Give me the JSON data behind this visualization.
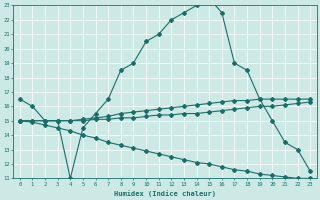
{
  "xlabel": "Humidex (Indice chaleur)",
  "xlim": [
    -0.5,
    23.5
  ],
  "ylim": [
    11,
    23
  ],
  "yticks": [
    11,
    12,
    13,
    14,
    15,
    16,
    17,
    18,
    19,
    20,
    21,
    22,
    23
  ],
  "xticks": [
    0,
    1,
    2,
    3,
    4,
    5,
    6,
    7,
    8,
    9,
    10,
    11,
    12,
    13,
    14,
    15,
    16,
    17,
    18,
    19,
    20,
    21,
    22,
    23
  ],
  "bg_color": "#cce9e5",
  "line_color": "#1a6e6a",
  "lines": [
    {
      "x": [
        0,
        1,
        2,
        3,
        4,
        5,
        6,
        7,
        8,
        9,
        10,
        11,
        12,
        13,
        14,
        15,
        16,
        17,
        18,
        19,
        20,
        21,
        22,
        23
      ],
      "y": [
        16.5,
        16.0,
        15.0,
        15.0,
        11.0,
        14.5,
        15.5,
        16.5,
        18.5,
        19.0,
        20.5,
        21.0,
        22.0,
        22.5,
        23.0,
        23.5,
        22.5,
        19.0,
        18.5,
        16.5,
        15.0,
        13.5,
        13.0,
        11.5
      ]
    },
    {
      "x": [
        0,
        1,
        2,
        3,
        4,
        5,
        6,
        7,
        8,
        9,
        10,
        11,
        12,
        13,
        14,
        15,
        16,
        17,
        18,
        19,
        20,
        21,
        22,
        23
      ],
      "y": [
        15.0,
        15.0,
        15.0,
        15.0,
        15.0,
        15.0,
        15.1,
        15.1,
        15.2,
        15.2,
        15.3,
        15.4,
        15.4,
        15.5,
        15.5,
        15.6,
        15.7,
        15.8,
        15.9,
        16.0,
        16.0,
        16.1,
        16.2,
        16.3
      ]
    },
    {
      "x": [
        0,
        1,
        2,
        3,
        4,
        5,
        6,
        7,
        8,
        9,
        10,
        11,
        12,
        13,
        14,
        15,
        16,
        17,
        18,
        19,
        20,
        21,
        22,
        23
      ],
      "y": [
        15.0,
        14.9,
        14.7,
        14.5,
        14.3,
        14.0,
        13.8,
        13.5,
        13.3,
        13.1,
        12.9,
        12.7,
        12.5,
        12.3,
        12.1,
        12.0,
        11.8,
        11.6,
        11.5,
        11.3,
        11.2,
        11.1,
        11.0,
        11.0
      ]
    },
    {
      "x": [
        0,
        1,
        2,
        3,
        4,
        5,
        6,
        7,
        8,
        9,
        10,
        11,
        12,
        13,
        14,
        15,
        16,
        17,
        18,
        19,
        20,
        21,
        22,
        23
      ],
      "y": [
        15.0,
        15.0,
        15.0,
        15.0,
        15.0,
        15.1,
        15.2,
        15.3,
        15.5,
        15.6,
        15.7,
        15.8,
        15.9,
        16.0,
        16.1,
        16.2,
        16.3,
        16.4,
        16.4,
        16.5,
        16.5,
        16.5,
        16.5,
        16.5
      ]
    }
  ]
}
